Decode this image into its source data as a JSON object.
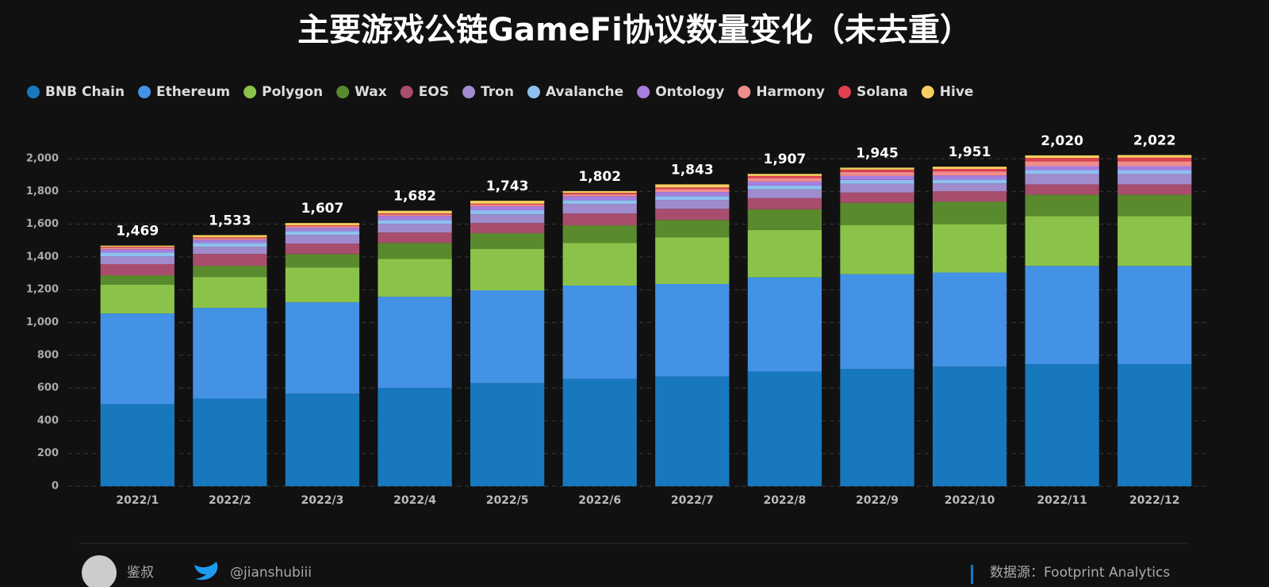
{
  "chart_data": {
    "type": "stacked_bar",
    "title": "主要游戏公链GameFi协议数量变化（未去重）",
    "categories": [
      "2022/1",
      "2022/2",
      "2022/3",
      "2022/4",
      "2022/5",
      "2022/6",
      "2022/7",
      "2022/8",
      "2022/9",
      "2022/10",
      "2022/11",
      "2022/12"
    ],
    "series": [
      {
        "name": "BNB Chain",
        "color": "#1878be",
        "values": [
          500,
          535,
          565,
          600,
          630,
          655,
          670,
          700,
          715,
          730,
          745,
          745
        ]
      },
      {
        "name": "Ethereum",
        "color": "#4392e6",
        "values": [
          555,
          554,
          558,
          557,
          566,
          570,
          565,
          575,
          580,
          575,
          600,
          600
        ]
      },
      {
        "name": "Polygon",
        "color": "#8bc34a",
        "values": [
          175,
          189,
          213,
          232,
          252,
          261,
          285,
          290,
          300,
          295,
          305,
          305
        ]
      },
      {
        "name": "Wax",
        "color": "#5a8a2e",
        "values": [
          58,
          68,
          82,
          97,
          97,
          107,
          106,
          126,
          135,
          138,
          130,
          130
        ]
      },
      {
        "name": "EOS",
        "color": "#a84d6e",
        "values": [
          68,
          72,
          63,
          63,
          62,
          72,
          68,
          68,
          63,
          63,
          63,
          63
        ]
      },
      {
        "name": "Tron",
        "color": "#a08ccc",
        "values": [
          48,
          44,
          53,
          53,
          53,
          58,
          53,
          53,
          53,
          48,
          63,
          63
        ]
      },
      {
        "name": "Avalanche",
        "color": "#8ec0ef",
        "values": [
          24,
          24,
          24,
          24,
          25,
          24,
          24,
          24,
          24,
          24,
          24,
          24
        ]
      },
      {
        "name": "Ontology",
        "color": "#a77ee0",
        "values": [
          19,
          19,
          20,
          24,
          24,
          24,
          25,
          24,
          24,
          24,
          24,
          24
        ]
      },
      {
        "name": "Harmony",
        "color": "#f08c8c",
        "values": [
          10,
          10,
          10,
          10,
          10,
          12,
          18,
          22,
          25,
          25,
          30,
          30
        ]
      },
      {
        "name": "Solana",
        "color": "#e04050",
        "values": [
          5,
          5,
          5,
          6,
          6,
          8,
          10,
          12,
          14,
          15,
          20,
          22
        ]
      },
      {
        "name": "Hive",
        "color": "#f5d060",
        "values": [
          7,
          13,
          14,
          16,
          18,
          11,
          19,
          13,
          12,
          14,
          16,
          16
        ]
      }
    ],
    "totals": [
      1469,
      1533,
      1607,
      1682,
      1743,
      1802,
      1843,
      1907,
      1945,
      1951,
      2020,
      2022
    ],
    "total_labels": [
      "1,469",
      "1,533",
      "1,607",
      "1,682",
      "1,743",
      "1,802",
      "1,843",
      "1,907",
      "1,945",
      "1,951",
      "2,020",
      "2,022"
    ],
    "ylim": [
      0,
      2000
    ],
    "yticks": [
      0,
      200,
      400,
      600,
      800,
      {
        "value": 1000,
        "label": "1,000"
      },
      {
        "value": 1200,
        "label": "1,200"
      },
      {
        "value": 1400,
        "label": "1,400"
      },
      {
        "value": 1600,
        "label": "1,600"
      },
      {
        "value": 1800,
        "label": "1,800"
      },
      {
        "value": 2000,
        "label": "2,000"
      }
    ],
    "grid": true,
    "legend": "top"
  },
  "footer": {
    "author": "鉴叔",
    "twitter": "@jianshubiii",
    "source": "数据源：Footprint Analytics"
  }
}
